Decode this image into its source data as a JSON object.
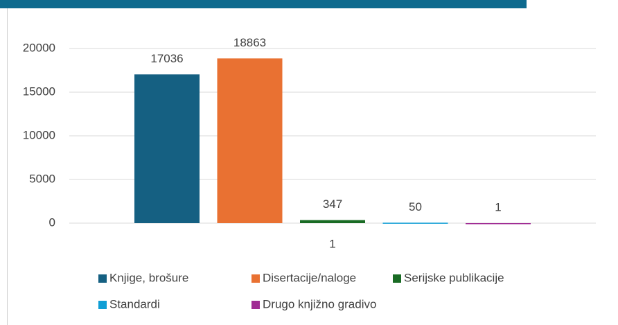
{
  "chart_data": {
    "type": "bar",
    "categories": [
      "1"
    ],
    "series": [
      {
        "name": "Knjige, brošure",
        "color": "#156082",
        "values": [
          17036
        ]
      },
      {
        "name": "Disertacije/naloge",
        "color": "#e97132",
        "values": [
          18863
        ]
      },
      {
        "name": "Serijske publikacije",
        "color": "#196b24",
        "values": [
          347
        ]
      },
      {
        "name": "Standardi",
        "color": "#0f9ed5",
        "values": [
          50
        ]
      },
      {
        "name": "Drugo knjižno gradivo",
        "color": "#a02b93",
        "values": [
          1
        ]
      }
    ],
    "ylim": [
      0,
      20000
    ],
    "yticks": [
      0,
      5000,
      10000,
      15000,
      20000
    ],
    "grid": true
  }
}
